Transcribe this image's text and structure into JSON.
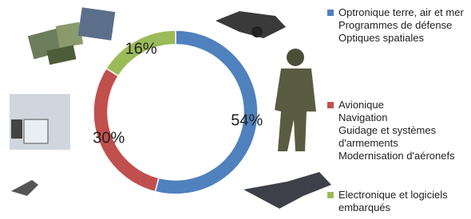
{
  "chart_data": {
    "type": "donut",
    "categories": [
      [
        "Optronique terre, air et mer",
        "Programmes de défense",
        "Optiques spatiales"
      ],
      [
        "Avionique",
        "Navigation",
        "Guidage et systèmes d'armements",
        "Modernisation d'aéronefs"
      ],
      [
        "Electronique et logiciels embarqués"
      ]
    ],
    "values": [
      54,
      30,
      16
    ],
    "value_labels": [
      "54%",
      "30%",
      "16%"
    ],
    "colors": [
      "#4f81bd",
      "#c0504d",
      "#9bbb59"
    ]
  }
}
